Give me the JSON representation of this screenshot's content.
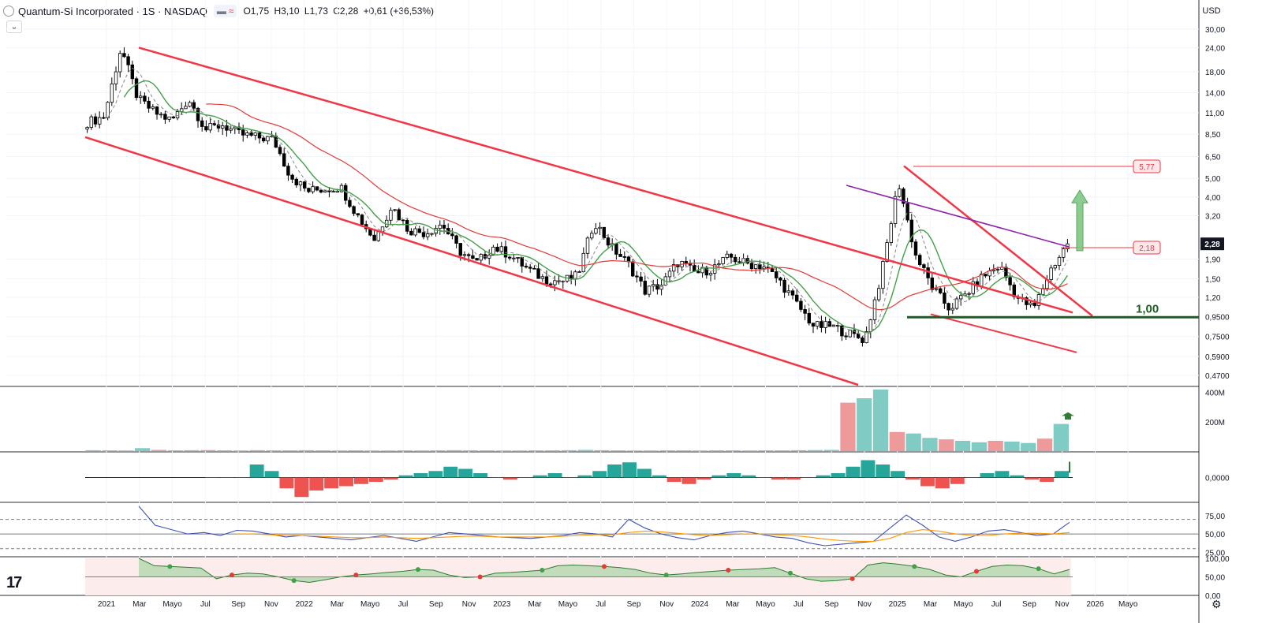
{
  "header": {
    "title": "Quantum-Si Incorporated · 1S · NASDAQ",
    "open": "O1,75",
    "high": "H3,10",
    "low": "L1,73",
    "close": "C2,28",
    "change": "+0,61 (+36,53%)",
    "currency": "USD"
  },
  "colors": {
    "up": "#ffffff",
    "down": "#000000",
    "channel": "#f23645",
    "support": "#1b5e20",
    "ma_green": "#43a047",
    "ma_red": "#e53935",
    "ma_purple": "#8e24aa",
    "rsi_blue": "#3f51b5",
    "rsi_orange": "#ff9800"
  },
  "chart_data": [
    {
      "type": "candlestick",
      "pane": "price",
      "scale": "log",
      "ylim": [
        0.42,
        32
      ],
      "y_ticks": [
        "30,00",
        "24,00",
        "18,00",
        "14,00",
        "11,00",
        "8,50",
        "6,50",
        "5,00",
        "4,00",
        "3,20",
        "2,28",
        "1,90",
        "1,50",
        "1,20",
        "0,9500",
        "0,7500",
        "0,5900",
        "0,4700"
      ],
      "x_ticks": [
        "2021",
        "Mar",
        "Mayo",
        "Jul",
        "Sep",
        "Nov",
        "2022",
        "Mar",
        "Mayo",
        "Jul",
        "Sep",
        "Nov",
        "2023",
        "Mar",
        "Mayo",
        "Jul",
        "Sep",
        "Nov",
        "2024",
        "Mar",
        "Mayo",
        "Jul",
        "Sep",
        "Nov",
        "2025",
        "Mar",
        "Mayo",
        "Jul",
        "Sep",
        "Nov",
        "2026",
        "Mayo"
      ],
      "x_range": [
        "2020-12",
        "2026-05"
      ],
      "last_price": 2.28,
      "price_points": [
        {
          "x": "2021-01",
          "y": 9.8
        },
        {
          "x": "2021-02",
          "y": 10.5
        },
        {
          "x": "2021-03",
          "y": 24
        },
        {
          "x": "2021-04",
          "y": 13
        },
        {
          "x": "2021-05",
          "y": 11
        },
        {
          "x": "2021-06",
          "y": 10
        },
        {
          "x": "2021-07",
          "y": 13
        },
        {
          "x": "2021-08",
          "y": 9
        },
        {
          "x": "2021-09",
          "y": 9.5
        },
        {
          "x": "2021-10",
          "y": 8.5
        },
        {
          "x": "2021-11",
          "y": 8.2
        },
        {
          "x": "2021-12",
          "y": 8
        },
        {
          "x": "2022-01",
          "y": 5.2
        },
        {
          "x": "2022-02",
          "y": 4.3
        },
        {
          "x": "2022-03",
          "y": 4.4
        },
        {
          "x": "2022-04",
          "y": 4.5
        },
        {
          "x": "2022-05",
          "y": 3.2
        },
        {
          "x": "2022-06",
          "y": 2.4
        },
        {
          "x": "2022-07",
          "y": 3.6
        },
        {
          "x": "2022-08",
          "y": 2.7
        },
        {
          "x": "2022-09",
          "y": 2.6
        },
        {
          "x": "2022-10",
          "y": 2.9
        },
        {
          "x": "2022-11",
          "y": 2.1
        },
        {
          "x": "2022-12",
          "y": 1.8
        },
        {
          "x": "2023-01",
          "y": 2.2
        },
        {
          "x": "2023-02",
          "y": 2.0
        },
        {
          "x": "2023-03",
          "y": 1.7
        },
        {
          "x": "2023-04",
          "y": 1.5
        },
        {
          "x": "2023-05",
          "y": 1.45
        },
        {
          "x": "2023-06",
          "y": 1.55
        },
        {
          "x": "2023-07",
          "y": 3.0
        },
        {
          "x": "2023-08",
          "y": 2.2
        },
        {
          "x": "2023-09",
          "y": 1.8
        },
        {
          "x": "2023-10",
          "y": 1.3
        },
        {
          "x": "2023-11",
          "y": 1.4
        },
        {
          "x": "2023-12",
          "y": 1.85
        },
        {
          "x": "2024-01",
          "y": 1.6
        },
        {
          "x": "2024-02",
          "y": 1.7
        },
        {
          "x": "2024-03",
          "y": 1.95
        },
        {
          "x": "2024-04",
          "y": 1.8
        },
        {
          "x": "2024-05",
          "y": 1.75
        },
        {
          "x": "2024-06",
          "y": 1.45
        },
        {
          "x": "2024-07",
          "y": 1.1
        },
        {
          "x": "2024-08",
          "y": 0.85
        },
        {
          "x": "2024-09",
          "y": 0.85
        },
        {
          "x": "2024-10",
          "y": 0.78
        },
        {
          "x": "2024-11",
          "y": 0.72
        },
        {
          "x": "2024-12",
          "y": 1.6
        },
        {
          "x": "2025-01",
          "y": 4.8
        },
        {
          "x": "2025-02",
          "y": 2.0
        },
        {
          "x": "2025-03",
          "y": 1.35
        },
        {
          "x": "2025-04",
          "y": 1.05
        },
        {
          "x": "2025-05",
          "y": 1.25
        },
        {
          "x": "2025-06",
          "y": 1.55
        },
        {
          "x": "2025-07",
          "y": 1.75
        },
        {
          "x": "2025-08",
          "y": 1.2
        },
        {
          "x": "2025-09",
          "y": 1.05
        },
        {
          "x": "2025-10",
          "y": 1.67
        },
        {
          "x": "2025-10b",
          "y": 2.28
        }
      ],
      "annotations": [
        {
          "text": "5,77",
          "value": 5.77
        },
        {
          "text": "2,18",
          "value": 2.18
        },
        {
          "text": "1,00",
          "value": 1.0
        }
      ]
    },
    {
      "type": "bar",
      "pane": "volume",
      "y_ticks": [
        "400M",
        "200M"
      ],
      "ylim": [
        0,
        430
      ],
      "values_millions": [
        6,
        5,
        4,
        20,
        8,
        5,
        6,
        7,
        5,
        4,
        6,
        5,
        5,
        6,
        5,
        4,
        5,
        4,
        4,
        5,
        4,
        5,
        6,
        5,
        5,
        4,
        4,
        5,
        5,
        6,
        8,
        6,
        5,
        4,
        4,
        5,
        5,
        4,
        5,
        5,
        4,
        5,
        5,
        6,
        7,
        8,
        330,
        360,
        420,
        130,
        120,
        90,
        80,
        70,
        60,
        70,
        65,
        55,
        85,
        185
      ]
    },
    {
      "type": "bar",
      "pane": "histogram",
      "y_ticks": [
        "0,0000"
      ],
      "ylim": [
        -1,
        1
      ],
      "values": [
        0,
        0,
        0,
        0.6,
        0.3,
        -0.5,
        -0.9,
        -0.6,
        -0.5,
        -0.4,
        -0.3,
        -0.2,
        -0.1,
        0.1,
        0.2,
        0.3,
        0.5,
        0.4,
        0.2,
        0,
        -0.1,
        0,
        0.1,
        0.2,
        0,
        0.1,
        0.3,
        0.6,
        0.7,
        0.4,
        0.1,
        -0.2,
        -0.3,
        -0.1,
        0.1,
        0.2,
        0.1,
        0,
        -0.1,
        -0.1,
        0,
        0.1,
        0.2,
        0.5,
        0.8,
        0.6,
        0.3,
        -0.1,
        -0.4,
        -0.5,
        -0.3,
        0,
        0.2,
        0.3,
        0.1,
        -0.1,
        -0.2,
        0.3
      ]
    },
    {
      "type": "line",
      "pane": "rsi",
      "y_ticks": [
        "75,00",
        "50,00",
        "25,00"
      ],
      "ylim": [
        20,
        90
      ],
      "levels": [
        70,
        50,
        30
      ],
      "series": [
        {
          "values": [
            88,
            62,
            56,
            50,
            52,
            48,
            55,
            54,
            50,
            46,
            48,
            46,
            44,
            42,
            45,
            48,
            44,
            40,
            46,
            52,
            50,
            48,
            46,
            45,
            44,
            46,
            48,
            52,
            50,
            46,
            70,
            58,
            50,
            45,
            42,
            48,
            52,
            54,
            50,
            46,
            44,
            38,
            34,
            36,
            38,
            40,
            58,
            76,
            62,
            46,
            40,
            46,
            54,
            56,
            52,
            48,
            50,
            66
          ]
        },
        {
          "values": [
            null,
            null,
            null,
            null,
            null,
            null,
            50,
            50,
            49,
            48,
            48,
            47,
            46,
            45,
            45,
            46,
            45,
            44,
            45,
            46,
            47,
            47,
            46,
            46,
            46,
            46,
            47,
            48,
            49,
            49,
            52,
            54,
            53,
            51,
            49,
            48,
            49,
            50,
            50,
            49,
            48,
            46,
            43,
            41,
            40,
            40,
            44,
            52,
            56,
            54,
            50,
            48,
            48,
            50,
            51,
            51,
            50,
            52
          ]
        }
      ]
    },
    {
      "type": "area",
      "pane": "oscillator",
      "y_ticks": [
        "100,00",
        "50,00",
        "0,00"
      ],
      "ylim": [
        0,
        100
      ],
      "values": [
        100,
        80,
        78,
        76,
        74,
        45,
        55,
        60,
        58,
        50,
        40,
        35,
        42,
        50,
        55,
        58,
        62,
        65,
        70,
        68,
        55,
        48,
        50,
        60,
        62,
        65,
        68,
        80,
        82,
        80,
        78,
        75,
        70,
        60,
        55,
        58,
        62,
        65,
        68,
        70,
        72,
        75,
        60,
        45,
        38,
        40,
        45,
        82,
        88,
        84,
        78,
        70,
        55,
        50,
        65,
        78,
        82,
        80,
        72,
        58,
        70
      ]
    }
  ]
}
